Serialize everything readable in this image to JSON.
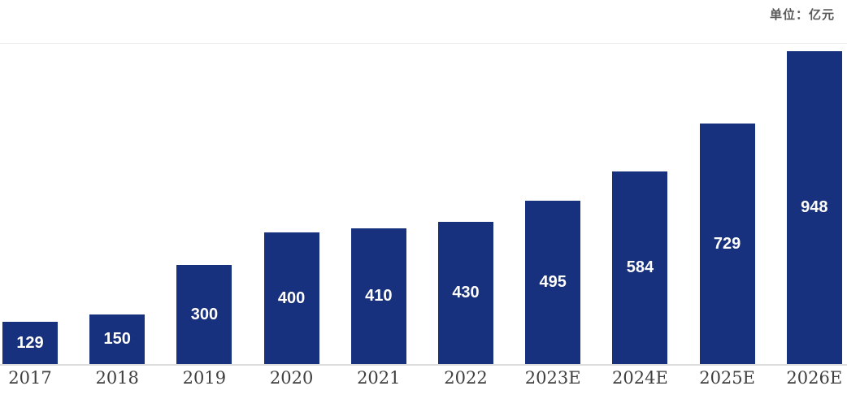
{
  "unit_label": "单位：亿元",
  "chart_data": {
    "type": "bar",
    "title": "",
    "unit_label": "单位：亿元",
    "unit": "亿元",
    "categories": [
      "2017",
      "2018",
      "2019",
      "2020",
      "2021",
      "2022",
      "2023E",
      "2024E",
      "2025E",
      "2026E"
    ],
    "values": [
      129,
      150,
      300,
      400,
      410,
      430,
      495,
      584,
      729,
      948
    ],
    "xlabel": "",
    "ylabel": "",
    "ylim": [
      0,
      948
    ],
    "grid": false,
    "legend": false,
    "value_label_position": "inside-center",
    "colors": {
      "bar": "#17317E",
      "value_label": "#FFFFFF",
      "category_label": "#3F3F3F",
      "unit_label": "#595959",
      "axis_line": "#DCDCDC",
      "background": "#FFFFFF"
    }
  }
}
